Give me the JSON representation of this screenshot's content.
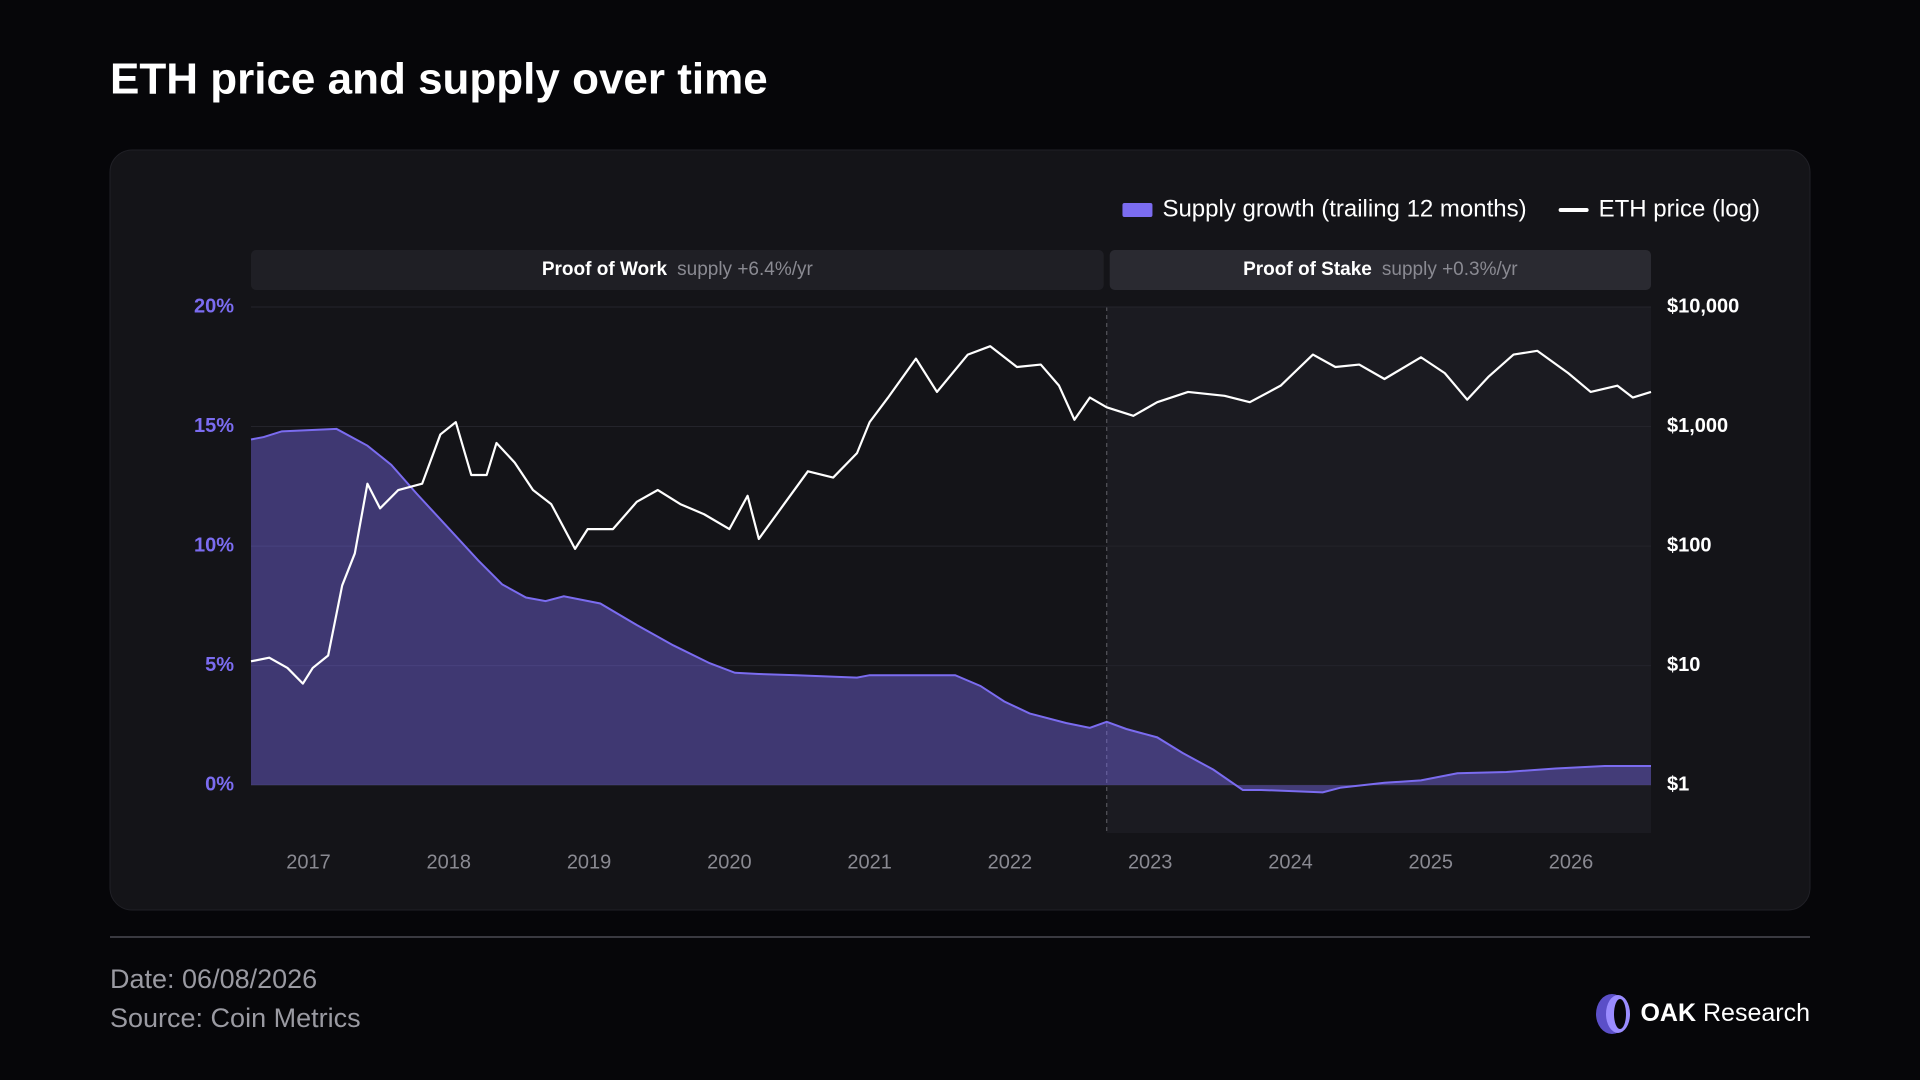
{
  "title": "ETH price and supply over time",
  "chart_data": {
    "type": "area-line",
    "legend": "top-right",
    "grid": true,
    "xlim": [
      2016.59,
      2026.57
    ],
    "xticks": [
      2017,
      2018,
      2019,
      2020,
      2021,
      2022,
      2023,
      2024,
      2025,
      2026
    ],
    "ylim": [
      -2,
      20
    ],
    "yticks": [
      {
        "value": 0,
        "label": "0%"
      },
      {
        "value": 5,
        "label": "5%"
      },
      {
        "value": 10,
        "label": "10%"
      },
      {
        "value": 15,
        "label": "15%"
      },
      {
        "value": 20,
        "label": "20%"
      }
    ],
    "y2lim": [
      0.4,
      10000
    ],
    "y2log": true,
    "y2ticks": [
      {
        "value": 1,
        "label": "$1"
      },
      {
        "value": 10,
        "label": "$10"
      },
      {
        "value": 100,
        "label": "$100"
      },
      {
        "value": 1000,
        "label": "$1,000"
      },
      {
        "value": 10000,
        "label": "$10,000"
      }
    ],
    "regions": [
      {
        "label": "Proof of Work",
        "note": "supply +6.4%/yr",
        "x0": 2016.59,
        "x1": 2022.69
      },
      {
        "label": "Proof of Stake",
        "note": "supply +0.3%/yr",
        "x0": 2022.69,
        "x1": 2026.57
      }
    ],
    "series": [
      {
        "name": "Supply growth (trailing 12 months)",
        "type": "area",
        "color": "#7b6cf0",
        "x": [
          2016.59,
          2016.68,
          2016.81,
          2017.2,
          2017.42,
          2017.59,
          2017.77,
          2017.99,
          2018.21,
          2018.38,
          2018.55,
          2018.69,
          2018.82,
          2019.08,
          2019.34,
          2019.6,
          2019.86,
          2020.04,
          2020.21,
          2020.48,
          2020.91,
          2021.0,
          2021.61,
          2021.79,
          2021.96,
          2022.14,
          2022.4,
          2022.57,
          2022.69,
          2022.83,
          2023.05,
          2023.23,
          2023.45,
          2023.66,
          2023.79,
          2024.23,
          2024.36,
          2024.67,
          2024.93,
          2025.19,
          2025.54,
          2025.89,
          2026.24,
          2026.57
        ],
        "values": [
          14.46,
          14.56,
          14.8,
          14.9,
          14.2,
          13.4,
          12.2,
          10.8,
          9.4,
          8.4,
          7.85,
          7.7,
          7.9,
          7.6,
          6.7,
          5.85,
          5.1,
          4.7,
          4.65,
          4.6,
          4.5,
          4.6,
          4.6,
          4.15,
          3.5,
          3.0,
          2.6,
          2.4,
          2.65,
          2.35,
          2.0,
          1.35,
          0.65,
          -0.2,
          -0.2,
          -0.3,
          -0.1,
          0.1,
          0.2,
          0.5,
          0.55,
          0.7,
          0.8,
          0.8
        ]
      },
      {
        "name": "ETH price (log)",
        "type": "line",
        "axis": "y2",
        "color": "#ffffff",
        "x": [
          2016.59,
          2016.72,
          2016.85,
          2016.96,
          2017.03,
          2017.14,
          2017.24,
          2017.33,
          2017.42,
          2017.51,
          2017.64,
          2017.81,
          2017.94,
          2018.05,
          2018.16,
          2018.27,
          2018.34,
          2018.47,
          2018.6,
          2018.73,
          2018.9,
          2018.99,
          2019.17,
          2019.34,
          2019.49,
          2019.65,
          2019.82,
          2020.0,
          2020.13,
          2020.21,
          2020.39,
          2020.56,
          2020.74,
          2020.91,
          2021.0,
          2021.13,
          2021.33,
          2021.48,
          2021.7,
          2021.86,
          2022.05,
          2022.22,
          2022.35,
          2022.46,
          2022.57,
          2022.69,
          2022.88,
          2023.05,
          2023.27,
          2023.53,
          2023.71,
          2023.93,
          2024.16,
          2024.32,
          2024.49,
          2024.67,
          2024.93,
          2025.1,
          2025.26,
          2025.41,
          2025.59,
          2025.76,
          2025.98,
          2026.14,
          2026.33,
          2026.44,
          2026.57
        ],
        "values": [
          10.9,
          11.7,
          9.6,
          7.1,
          9.6,
          12.2,
          47,
          87,
          333,
          207,
          295,
          333,
          860,
          1090,
          394,
          394,
          730,
          500,
          295,
          225,
          95,
          139,
          139,
          235,
          295,
          225,
          185,
          139,
          264,
          115,
          225,
          423,
          375,
          600,
          1090,
          1740,
          3700,
          1950,
          4000,
          4700,
          3150,
          3300,
          2200,
          1140,
          1750,
          1450,
          1230,
          1600,
          1950,
          1810,
          1600,
          2200,
          4000,
          3150,
          3300,
          2500,
          3800,
          2800,
          1680,
          2600,
          4000,
          4300,
          2800,
          1950,
          2200,
          1750,
          1950
        ]
      }
    ]
  },
  "footer": {
    "date": "Date: 06/08/2026",
    "source": "Source: Coin Metrics"
  },
  "brand": {
    "name": "OAK",
    "suffix": "Research"
  }
}
